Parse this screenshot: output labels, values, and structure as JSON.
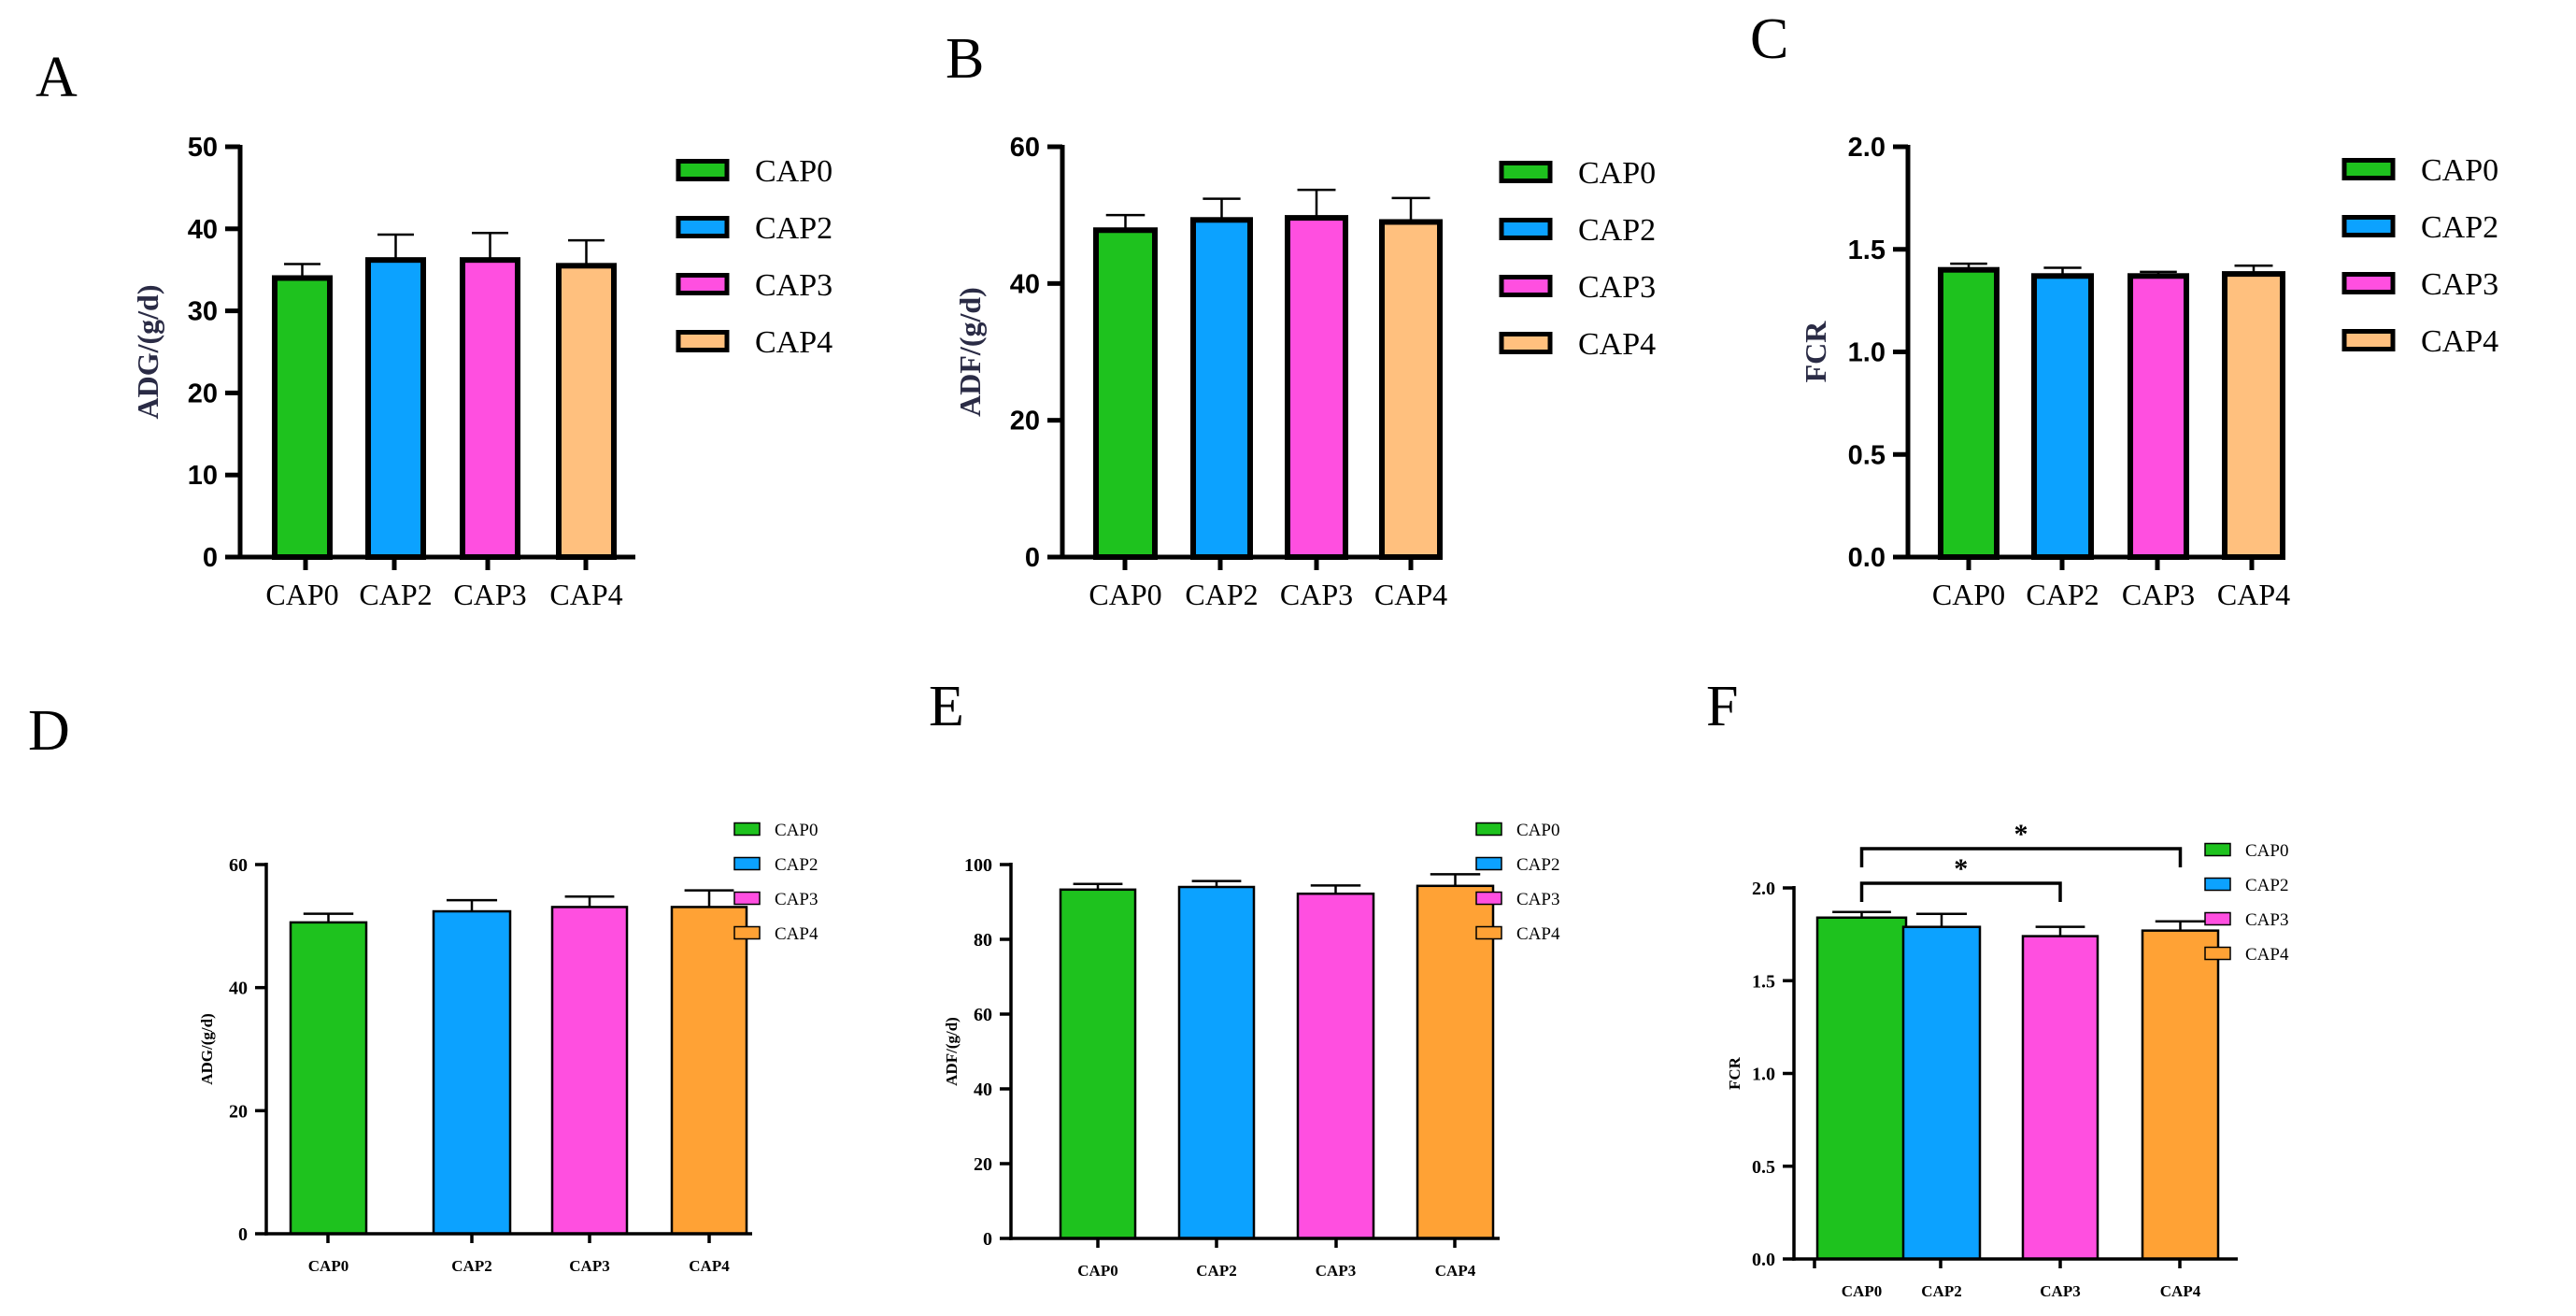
{
  "colors": {
    "CAP0": "#1ec21e",
    "CAP2": "#0ca2ff",
    "CAP3": "#ff4fe0",
    "CAP4_top": "#ffc07e",
    "CAP4_bottom": "#ffa235"
  },
  "chart_data": [
    {
      "panel": "A",
      "type": "bar",
      "style": "top",
      "title": "",
      "ylabel": "ADG/(g/d)",
      "xlabel": "",
      "categories": [
        "CAP0",
        "CAP2",
        "CAP3",
        "CAP4"
      ],
      "values": [
        34.0,
        36.2,
        36.2,
        35.5
      ],
      "errors": [
        1.7,
        3.1,
        3.3,
        3.1
      ],
      "ylim": [
        0,
        50
      ],
      "yticks": [
        0,
        10,
        20,
        30,
        40,
        50
      ],
      "ytick_labels": [
        "0",
        "10",
        "20",
        "30",
        "40",
        "50"
      ],
      "legend": [
        "CAP0",
        "CAP2",
        "CAP3",
        "CAP4"
      ],
      "legend_position": "right",
      "significance": []
    },
    {
      "panel": "B",
      "type": "bar",
      "style": "top",
      "title": "",
      "ylabel": "ADF/(g/d)",
      "xlabel": "",
      "categories": [
        "CAP0",
        "CAP2",
        "CAP3",
        "CAP4"
      ],
      "values": [
        47.8,
        49.3,
        49.6,
        49.0
      ],
      "errors": [
        2.2,
        3.1,
        4.1,
        3.5
      ],
      "ylim": [
        0,
        60
      ],
      "yticks": [
        0,
        20,
        40,
        60
      ],
      "ytick_labels": [
        "0",
        "20",
        "40",
        "60"
      ],
      "legend": [
        "CAP0",
        "CAP2",
        "CAP3",
        "CAP4"
      ],
      "legend_position": "right",
      "significance": []
    },
    {
      "panel": "C",
      "type": "bar",
      "style": "top",
      "title": "",
      "ylabel": "FCR",
      "xlabel": "",
      "categories": [
        "CAP0",
        "CAP2",
        "CAP3",
        "CAP4"
      ],
      "values": [
        1.4,
        1.37,
        1.37,
        1.38
      ],
      "errors": [
        0.03,
        0.04,
        0.02,
        0.04
      ],
      "ylim": [
        0,
        2.0
      ],
      "yticks": [
        0,
        0.5,
        1.0,
        1.5,
        2.0
      ],
      "ytick_labels": [
        "0.0",
        "0.5",
        "1.0",
        "1.5",
        "2.0"
      ],
      "legend": [
        "CAP0",
        "CAP2",
        "CAP3",
        "CAP4"
      ],
      "legend_position": "right",
      "significance": []
    },
    {
      "panel": "D",
      "type": "bar",
      "style": "bottom",
      "title": "",
      "ylabel": "ADG/(g/d)",
      "xlabel": "",
      "categories": [
        "CAP0",
        "CAP2",
        "CAP3",
        "CAP4"
      ],
      "values": [
        50.6,
        52.4,
        53.1,
        53.1
      ],
      "errors": [
        1.4,
        1.8,
        1.7,
        2.7
      ],
      "ylim": [
        0,
        60
      ],
      "yticks": [
        0,
        20,
        40,
        60
      ],
      "ytick_labels": [
        "0",
        "20",
        "40",
        "60"
      ],
      "legend": [
        "CAP0",
        "CAP2",
        "CAP3",
        "CAP4"
      ],
      "legend_position": "right",
      "significance": []
    },
    {
      "panel": "E",
      "type": "bar",
      "style": "bottom",
      "title": "",
      "ylabel": "ADF/(g/d)",
      "xlabel": "",
      "categories": [
        "CAP0",
        "CAP2",
        "CAP3",
        "CAP4"
      ],
      "values": [
        93.3,
        94.0,
        92.2,
        94.3
      ],
      "errors": [
        1.5,
        1.6,
        2.2,
        3.1
      ],
      "ylim": [
        0,
        100
      ],
      "yticks": [
        0,
        20,
        40,
        60,
        80,
        100
      ],
      "ytick_labels": [
        "0",
        "20",
        "40",
        "60",
        "80",
        "100"
      ],
      "legend": [
        "CAP0",
        "CAP2",
        "CAP3",
        "CAP4"
      ],
      "legend_position": "right",
      "significance": []
    },
    {
      "panel": "F",
      "type": "bar",
      "style": "bottom",
      "title": "",
      "ylabel": "FCR",
      "xlabel": "",
      "categories": [
        "CAP0",
        "CAP2",
        "CAP3",
        "CAP4"
      ],
      "values": [
        1.84,
        1.79,
        1.74,
        1.77
      ],
      "errors": [
        0.03,
        0.07,
        0.05,
        0.05
      ],
      "ylim": [
        0,
        2.0
      ],
      "yticks": [
        0,
        0.5,
        1.0,
        1.5,
        2.0
      ],
      "ytick_labels": [
        "0.0",
        "0.5",
        "1.0",
        "1.5",
        "2.0"
      ],
      "legend": [
        "CAP0",
        "CAP2",
        "CAP3",
        "CAP4"
      ],
      "legend_position": "right",
      "significance": [
        {
          "from": "CAP0",
          "to": "CAP3",
          "label": "*"
        },
        {
          "from": "CAP0",
          "to": "CAP4",
          "label": "*"
        }
      ]
    }
  ]
}
